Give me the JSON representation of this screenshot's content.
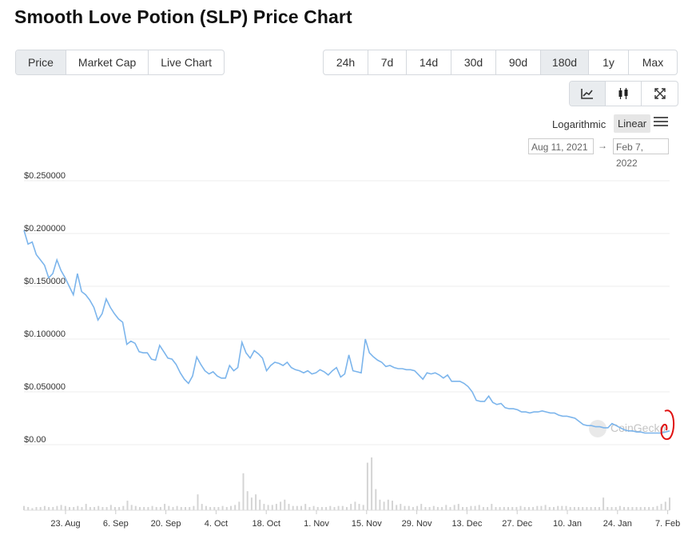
{
  "page": {
    "title": "Smooth Love Potion (SLP) Price Chart"
  },
  "tabs": [
    {
      "label": "Price",
      "active": true
    },
    {
      "label": "Market Cap",
      "active": false
    },
    {
      "label": "Live Chart",
      "active": false
    }
  ],
  "ranges": [
    {
      "label": "24h",
      "active": false
    },
    {
      "label": "7d",
      "active": false
    },
    {
      "label": "14d",
      "active": false
    },
    {
      "label": "30d",
      "active": false
    },
    {
      "label": "90d",
      "active": false
    },
    {
      "label": "180d",
      "active": true
    },
    {
      "label": "1y",
      "active": false
    },
    {
      "label": "Max",
      "active": false
    }
  ],
  "view_icons": [
    "line-chart-icon",
    "candlestick-icon",
    "expand-icon"
  ],
  "scale": {
    "log_label": "Logarithmic",
    "linear_label": "Linear",
    "selected": "Linear"
  },
  "date_range": {
    "from": "Aug 11, 2021",
    "arrow": "→",
    "to": "Feb 7, 2022"
  },
  "watermark": "CoinGecko",
  "colors": {
    "line": "#7cb5ec",
    "volume": "#d4d4d4",
    "annotation": "#e01010"
  },
  "chart_data": {
    "type": "line",
    "y_ticks": [
      "$0.250000",
      "$0.200000",
      "$0.150000",
      "$0.100000",
      "$0.050000",
      "$0.00"
    ],
    "ylim": [
      0,
      0.25
    ],
    "grid": true,
    "x_ticks": [
      "23. Aug",
      "6. Sep",
      "20. Sep",
      "4. Oct",
      "18. Oct",
      "1. Nov",
      "15. Nov",
      "29. Nov",
      "13. Dec",
      "27. Dec",
      "10. Jan",
      "24. Jan",
      "7. Feb"
    ],
    "x_start": "Aug 11, 2021",
    "x_end": "Feb 7, 2022",
    "series": [
      {
        "values": [
          0.203,
          0.19,
          0.192,
          0.18,
          0.175,
          0.17,
          0.158,
          0.162,
          0.175,
          0.165,
          0.158,
          0.15,
          0.142,
          0.162,
          0.145,
          0.142,
          0.137,
          0.13,
          0.118,
          0.124,
          0.138,
          0.13,
          0.124,
          0.119,
          0.116,
          0.095,
          0.098,
          0.096,
          0.088,
          0.087,
          0.087,
          0.081,
          0.08,
          0.094,
          0.088,
          0.082,
          0.081,
          0.076,
          0.068,
          0.062,
          0.058,
          0.065,
          0.083,
          0.076,
          0.07,
          0.067,
          0.069,
          0.065,
          0.063,
          0.063,
          0.075,
          0.07,
          0.073,
          0.097,
          0.087,
          0.082,
          0.089,
          0.086,
          0.082,
          0.07,
          0.075,
          0.078,
          0.077,
          0.075,
          0.078,
          0.073,
          0.071,
          0.07,
          0.068,
          0.07,
          0.067,
          0.068,
          0.071,
          0.069,
          0.066,
          0.07,
          0.073,
          0.064,
          0.067,
          0.085,
          0.07,
          0.069,
          0.068,
          0.1,
          0.087,
          0.083,
          0.08,
          0.078,
          0.074,
          0.075,
          0.073,
          0.072,
          0.072,
          0.071,
          0.071,
          0.07,
          0.066,
          0.062,
          0.068,
          0.067,
          0.068,
          0.066,
          0.063,
          0.066,
          0.06,
          0.06,
          0.06,
          0.058,
          0.055,
          0.05,
          0.042,
          0.041,
          0.041,
          0.046,
          0.04,
          0.038,
          0.039,
          0.035,
          0.034,
          0.034,
          0.033,
          0.031,
          0.031,
          0.03,
          0.031,
          0.031,
          0.032,
          0.031,
          0.03,
          0.03,
          0.028,
          0.027,
          0.027,
          0.026,
          0.025,
          0.022,
          0.019,
          0.018,
          0.018,
          0.017,
          0.017,
          0.016,
          0.016,
          0.02,
          0.018,
          0.016,
          0.014,
          0.013,
          0.013,
          0.012,
          0.012,
          0.011,
          0.011,
          0.011,
          0.011,
          0.011,
          0.012,
          0.013
        ]
      }
    ],
    "volume": [
      4,
      3,
      2,
      3,
      3,
      4,
      3,
      3,
      4,
      5,
      4,
      3,
      3,
      4,
      3,
      6,
      3,
      3,
      4,
      3,
      3,
      5,
      3,
      3,
      4,
      9,
      5,
      4,
      3,
      3,
      3,
      4,
      3,
      3,
      6,
      4,
      3,
      4,
      3,
      3,
      3,
      4,
      15,
      6,
      4,
      3,
      3,
      3,
      4,
      3,
      4,
      5,
      8,
      35,
      18,
      12,
      15,
      10,
      6,
      5,
      5,
      6,
      8,
      10,
      6,
      4,
      4,
      4,
      6,
      3,
      4,
      3,
      3,
      3,
      4,
      3,
      4,
      4,
      3,
      6,
      8,
      6,
      5,
      45,
      50,
      20,
      10,
      8,
      10,
      9,
      5,
      6,
      4,
      4,
      3,
      4,
      6,
      3,
      3,
      4,
      3,
      3,
      5,
      3,
      5,
      6,
      3,
      3,
      4,
      4,
      5,
      3,
      3,
      6,
      3,
      3,
      3,
      3,
      3,
      3,
      4,
      3,
      3,
      3,
      4,
      4,
      5,
      3,
      3,
      4,
      4,
      4,
      3,
      3,
      3,
      3,
      3,
      3,
      3,
      3,
      12,
      3,
      3,
      3,
      4,
      3,
      3,
      3,
      3,
      3,
      3,
      3,
      3,
      4,
      6,
      8,
      12
    ]
  }
}
